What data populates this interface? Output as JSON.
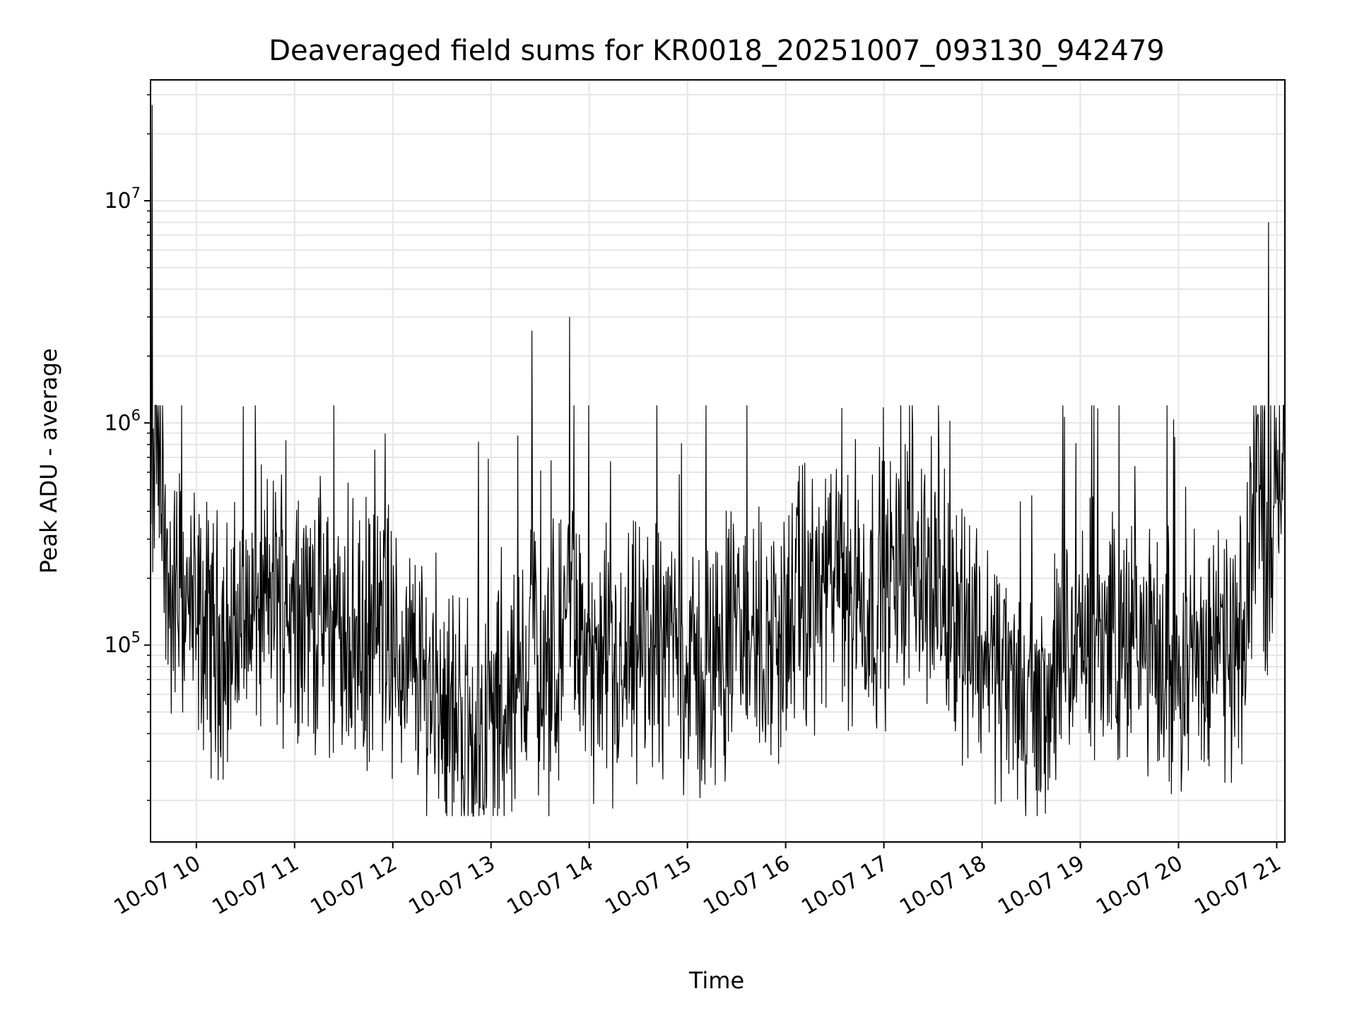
{
  "chart_data": {
    "type": "line",
    "title": "Deaveraged field sums for KR0018_20251007_093130_942479",
    "xlabel": "Time",
    "ylabel": "Peak ADU - average",
    "yscale": "log",
    "xlim": [
      "10-07 09:32",
      "10-07 21:05"
    ],
    "ylim": [
      13000,
      35000000
    ],
    "grid": true,
    "line_color": "#000000",
    "x_ticks": [
      "10-07 10",
      "10-07 11",
      "10-07 12",
      "10-07 13",
      "10-07 14",
      "10-07 15",
      "10-07 16",
      "10-07 17",
      "10-07 18",
      "10-07 19",
      "10-07 20",
      "10-07 21"
    ],
    "y_ticks": [
      {
        "value": 100000,
        "base": "10",
        "exp": "5"
      },
      {
        "value": 1000000,
        "base": "10",
        "exp": "6"
      },
      {
        "value": 10000000,
        "base": "10",
        "exp": "7"
      }
    ],
    "series": [
      {
        "x": [
          "10-07 09:32",
          "10-07 09:33",
          "10-07 09:35",
          "10-07 09:40",
          "10-07 09:45",
          "10-07 09:50",
          "10-07 10:00",
          "10-07 10:10",
          "10-07 10:20",
          "10-07 10:30",
          "10-07 10:40",
          "10-07 10:50",
          "10-07 11:00",
          "10-07 11:10",
          "10-07 11:20",
          "10-07 11:30",
          "10-07 11:40",
          "10-07 11:50",
          "10-07 12:00",
          "10-07 12:10",
          "10-07 12:20",
          "10-07 12:30",
          "10-07 12:40",
          "10-07 12:50",
          "10-07 13:00",
          "10-07 13:10",
          "10-07 13:20",
          "10-07 13:25",
          "10-07 13:30",
          "10-07 13:40",
          "10-07 13:48",
          "10-07 13:55",
          "10-07 14:00",
          "10-07 14:10",
          "10-07 14:20",
          "10-07 14:30",
          "10-07 14:40",
          "10-07 14:50",
          "10-07 15:00",
          "10-07 15:10",
          "10-07 15:20",
          "10-07 15:30",
          "10-07 15:40",
          "10-07 15:50",
          "10-07 16:00",
          "10-07 16:10",
          "10-07 16:20",
          "10-07 16:30",
          "10-07 16:40",
          "10-07 16:50",
          "10-07 17:00",
          "10-07 17:10",
          "10-07 17:17",
          "10-07 17:30",
          "10-07 17:40",
          "10-07 17:50",
          "10-07 18:00",
          "10-07 18:10",
          "10-07 18:20",
          "10-07 18:30",
          "10-07 18:40",
          "10-07 18:50",
          "10-07 19:00",
          "10-07 19:10",
          "10-07 19:20",
          "10-07 19:30",
          "10-07 19:40",
          "10-07 19:50",
          "10-07 20:00",
          "10-07 20:10",
          "10-07 20:20",
          "10-07 20:30",
          "10-07 20:40",
          "10-07 20:45",
          "10-07 20:50",
          "10-07 20:55",
          "10-07 21:00",
          "10-07 21:05"
        ],
        "y": [
          400000,
          27000000,
          1200000,
          250000,
          150000,
          180000,
          120000,
          110000,
          100000,
          130000,
          150000,
          170000,
          160000,
          140000,
          120000,
          110000,
          100000,
          120000,
          90000,
          80000,
          70000,
          60000,
          45000,
          40000,
          45000,
          55000,
          60000,
          2600000,
          50000,
          70000,
          3000000,
          90000,
          80000,
          60000,
          70000,
          90000,
          100000,
          110000,
          80000,
          70000,
          100000,
          120000,
          110000,
          100000,
          120000,
          150000,
          170000,
          180000,
          170000,
          160000,
          180000,
          200000,
          300000,
          180000,
          150000,
          130000,
          100000,
          80000,
          60000,
          50000,
          60000,
          80000,
          100000,
          110000,
          120000,
          100000,
          90000,
          80000,
          85000,
          90000,
          95000,
          90000,
          85000,
          400000,
          500000,
          8000000,
          600000,
          700000
        ]
      }
    ]
  }
}
